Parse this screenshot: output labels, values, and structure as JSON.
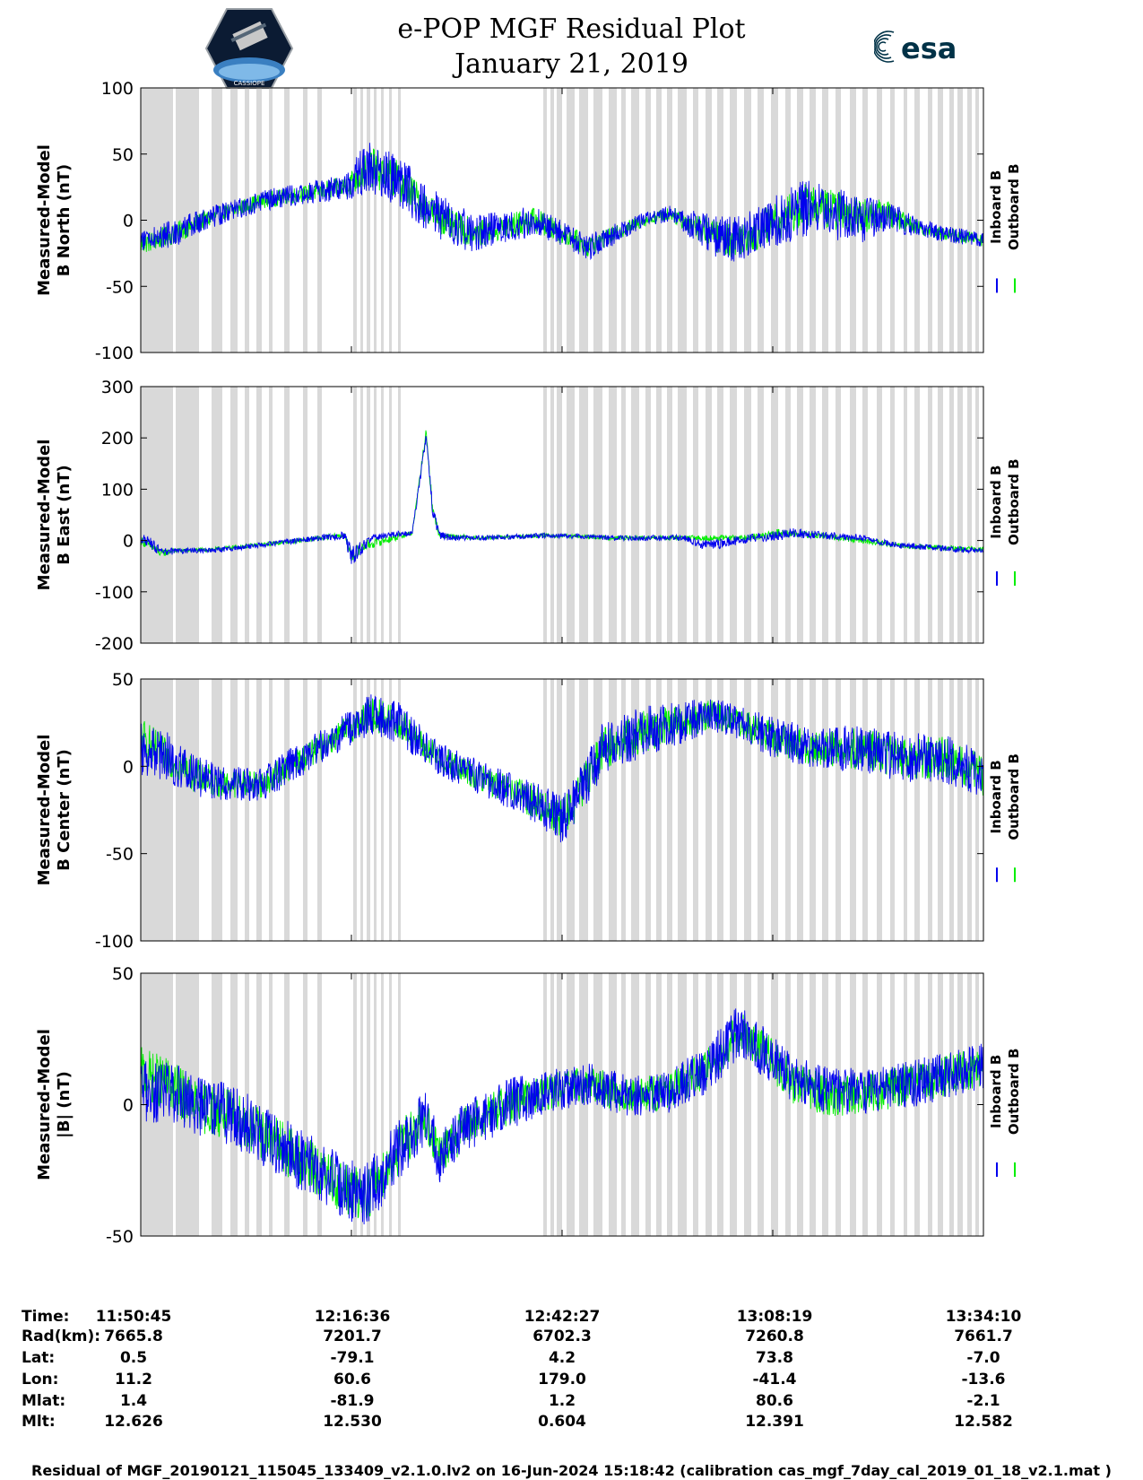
{
  "header": {
    "title": "e-POP MGF Residual Plot",
    "date": "January 21, 2019",
    "left_logo_text": "CASSIOPE",
    "right_logo_text": "esa"
  },
  "colors": {
    "inboard": "#0000ee",
    "outboard": "#00ee00",
    "gap_shading": "#d9d9d9"
  },
  "chart_data": [
    {
      "type": "line",
      "panel": "b-north",
      "ylabel_line1": "Measured-Model",
      "ylabel_line2": "B North (nT)",
      "ylim": [
        -100,
        100
      ],
      "yticks": [
        100,
        50,
        0,
        -50,
        -100
      ],
      "xlim": [
        0,
        6205
      ],
      "legend": {
        "position": "right",
        "entries": [
          "Inboard B",
          "Outboard B"
        ]
      },
      "series": [
        {
          "name": "Inboard B",
          "color_key": "inboard",
          "x": [
            0,
            150,
            250,
            350,
            600,
            900,
            1200,
            1500,
            1600,
            1700,
            1900,
            2100,
            2300,
            2500,
            2700,
            2900,
            3100,
            3300,
            3500,
            3700,
            3900,
            4100,
            4300,
            4500,
            4700,
            4900,
            5100,
            5300,
            5500,
            5700,
            5900,
            6205
          ],
          "y": [
            -15,
            -12,
            -10,
            -5,
            5,
            15,
            20,
            25,
            35,
            40,
            30,
            10,
            -5,
            -10,
            -5,
            0,
            -10,
            -20,
            -10,
            0,
            5,
            -5,
            -15,
            -10,
            0,
            10,
            5,
            0,
            5,
            -5,
            -10,
            -15
          ],
          "noise": [
            8,
            10,
            10,
            10,
            8,
            8,
            8,
            10,
            18,
            20,
            20,
            18,
            18,
            15,
            12,
            12,
            10,
            10,
            8,
            6,
            6,
            12,
            18,
            18,
            20,
            22,
            20,
            18,
            12,
            8,
            6,
            6
          ]
        },
        {
          "name": "Outboard B",
          "color_key": "outboard",
          "x": [
            0,
            150,
            250,
            350,
            600,
            900,
            1200,
            1500,
            1700,
            1900,
            2100,
            2300,
            2500,
            2700,
            2900,
            3100,
            3300,
            3500,
            3700,
            3900,
            4100,
            4300,
            4500,
            4700,
            4900,
            5100,
            5300,
            5500,
            5700,
            5900,
            6205
          ],
          "y": [
            -18,
            -14,
            -10,
            -5,
            5,
            15,
            20,
            25,
            40,
            30,
            10,
            -5,
            -10,
            -5,
            0,
            -10,
            -20,
            -10,
            0,
            5,
            -5,
            -15,
            -10,
            0,
            12,
            8,
            3,
            5,
            -5,
            -10,
            -15
          ],
          "noise": [
            8,
            8,
            8,
            8,
            6,
            6,
            6,
            8,
            15,
            15,
            12,
            12,
            10,
            10,
            10,
            8,
            8,
            6,
            5,
            5,
            10,
            14,
            14,
            15,
            16,
            15,
            14,
            10,
            6,
            5,
            5
          ]
        }
      ]
    },
    {
      "type": "line",
      "panel": "b-east",
      "ylabel_line1": "Measured-Model",
      "ylabel_line2": "B East (nT)",
      "ylim": [
        -200,
        300
      ],
      "yticks": [
        300,
        200,
        100,
        0,
        -100,
        -200
      ],
      "xlim": [
        0,
        6205
      ],
      "legend": {
        "position": "right",
        "entries": [
          "Inboard B",
          "Outboard B"
        ]
      },
      "series": [
        {
          "name": "Inboard B",
          "color_key": "inboard",
          "x": [
            0,
            100,
            150,
            250,
            500,
            700,
            1000,
            1300,
            1500,
            1550,
            1650,
            1700,
            1800,
            2000,
            2100,
            2150,
            2200,
            2300,
            2500,
            3000,
            3500,
            4000,
            4100,
            4200,
            4500,
            4700,
            4800,
            5000,
            5300,
            5600,
            6205
          ],
          "y": [
            5,
            -10,
            -25,
            -20,
            -20,
            -15,
            -5,
            5,
            10,
            -30,
            -10,
            5,
            10,
            15,
            200,
            60,
            10,
            5,
            5,
            10,
            5,
            5,
            -5,
            -10,
            5,
            10,
            15,
            10,
            5,
            -10,
            -20
          ],
          "noise": [
            10,
            12,
            10,
            6,
            5,
            5,
            5,
            6,
            8,
            20,
            12,
            6,
            6,
            6,
            10,
            15,
            8,
            6,
            5,
            5,
            5,
            6,
            8,
            12,
            8,
            10,
            10,
            8,
            6,
            6,
            6
          ]
        },
        {
          "name": "Outboard B",
          "color_key": "outboard",
          "x": [
            0,
            100,
            150,
            250,
            500,
            1000,
            1500,
            1550,
            1650,
            2000,
            2100,
            2150,
            2200,
            2500,
            3000,
            3500,
            4000,
            4500,
            4700,
            5000,
            5600,
            6205
          ],
          "y": [
            0,
            -15,
            -25,
            -20,
            -18,
            -5,
            10,
            -30,
            -10,
            15,
            210,
            60,
            10,
            5,
            10,
            5,
            5,
            5,
            15,
            10,
            -10,
            -18
          ],
          "noise": [
            8,
            10,
            8,
            5,
            4,
            4,
            6,
            15,
            10,
            5,
            8,
            10,
            6,
            4,
            4,
            4,
            5,
            6,
            8,
            6,
            5,
            5
          ]
        }
      ]
    },
    {
      "type": "line",
      "panel": "b-center",
      "ylabel_line1": "Measured-Model",
      "ylabel_line2": "B Center (nT)",
      "ylim": [
        -100,
        50
      ],
      "yticks": [
        50,
        0,
        -50,
        -100
      ],
      "xlim": [
        0,
        6205
      ],
      "legend": {
        "position": "right",
        "entries": [
          "Inboard B",
          "Outboard B"
        ]
      },
      "series": [
        {
          "name": "Inboard B",
          "color_key": "inboard",
          "x": [
            0,
            200,
            400,
            600,
            900,
            1200,
            1500,
            1700,
            1900,
            2100,
            2300,
            2600,
            2900,
            3100,
            3200,
            3400,
            3700,
            4000,
            4200,
            4400,
            4700,
            5000,
            5300,
            5600,
            5900,
            6205
          ],
          "y": [
            10,
            5,
            -5,
            -10,
            -10,
            5,
            20,
            30,
            25,
            10,
            0,
            -10,
            -20,
            -30,
            -20,
            10,
            20,
            25,
            30,
            25,
            15,
            10,
            10,
            5,
            5,
            -5
          ],
          "noise": [
            15,
            15,
            12,
            10,
            10,
            10,
            10,
            12,
            12,
            10,
            10,
            10,
            12,
            15,
            15,
            15,
            15,
            12,
            10,
            10,
            12,
            12,
            14,
            14,
            14,
            14
          ]
        },
        {
          "name": "Outboard B",
          "color_key": "outboard",
          "x": [
            0,
            200,
            400,
            600,
            900,
            1200,
            1500,
            1700,
            1900,
            2100,
            2300,
            2600,
            2900,
            3100,
            3200,
            3400,
            3700,
            4000,
            4200,
            4400,
            4700,
            5000,
            5300,
            5600,
            5900,
            6205
          ],
          "y": [
            15,
            5,
            -5,
            -10,
            -10,
            5,
            20,
            30,
            25,
            10,
            0,
            -10,
            -20,
            -30,
            -20,
            10,
            20,
            25,
            30,
            25,
            15,
            10,
            10,
            5,
            5,
            -5
          ],
          "noise": [
            14,
            10,
            10,
            8,
            8,
            8,
            8,
            10,
            10,
            8,
            8,
            8,
            10,
            12,
            12,
            12,
            12,
            10,
            8,
            8,
            10,
            10,
            12,
            12,
            12,
            12
          ]
        }
      ]
    },
    {
      "type": "line",
      "panel": "b-magnitude",
      "ylabel_line1": "Measured-Model",
      "ylabel_line2": "|B| (nT)",
      "ylim": [
        -50,
        50
      ],
      "yticks": [
        50,
        0,
        -50
      ],
      "xlim": [
        0,
        6205
      ],
      "legend": {
        "position": "right",
        "entries": [
          "Inboard B",
          "Outboard B"
        ]
      },
      "series": [
        {
          "name": "Inboard B",
          "color_key": "inboard",
          "x": [
            0,
            200,
            400,
            700,
            1000,
            1300,
            1500,
            1650,
            1800,
            2000,
            2100,
            2200,
            2400,
            2700,
            3000,
            3300,
            3600,
            3900,
            4200,
            4400,
            4600,
            4800,
            5100,
            5400,
            5700,
            6000,
            6205
          ],
          "y": [
            5,
            5,
            0,
            -5,
            -15,
            -25,
            -32,
            -35,
            -25,
            -10,
            -5,
            -20,
            -8,
            0,
            5,
            8,
            3,
            5,
            15,
            28,
            20,
            10,
            5,
            5,
            8,
            12,
            15
          ],
          "noise": [
            12,
            12,
            12,
            12,
            12,
            12,
            12,
            12,
            12,
            12,
            10,
            10,
            10,
            10,
            8,
            8,
            8,
            8,
            10,
            10,
            10,
            9,
            9,
            9,
            9,
            9,
            9
          ]
        },
        {
          "name": "Outboard B",
          "color_key": "outboard",
          "x": [
            0,
            200,
            400,
            700,
            1000,
            1300,
            1500,
            1650,
            1800,
            2000,
            2100,
            2200,
            2400,
            2700,
            3000,
            3300,
            3600,
            3900,
            4200,
            4400,
            4600,
            4800,
            5100,
            5400,
            5700,
            6000,
            6205
          ],
          "y": [
            12,
            8,
            0,
            -5,
            -15,
            -25,
            -32,
            -35,
            -25,
            -10,
            -5,
            -20,
            -8,
            0,
            5,
            8,
            3,
            5,
            15,
            28,
            20,
            8,
            3,
            5,
            8,
            12,
            15
          ],
          "noise": [
            10,
            10,
            10,
            10,
            10,
            10,
            10,
            10,
            10,
            10,
            8,
            8,
            8,
            8,
            7,
            7,
            7,
            7,
            8,
            8,
            8,
            8,
            8,
            8,
            8,
            8,
            8
          ]
        }
      ]
    }
  ],
  "info": {
    "labels": [
      "Time:",
      "Rad(km):",
      "Lat:",
      "Lon:",
      "Mlat:",
      "Mlt:"
    ],
    "columns": [
      {
        "values": [
          "11:50:45",
          "7665.8",
          "0.5",
          "11.2",
          "1.4",
          "12.626"
        ]
      },
      {
        "values": [
          "12:16:36",
          "7201.7",
          "-79.1",
          "60.6",
          "-81.9",
          "12.530"
        ]
      },
      {
        "values": [
          "12:42:27",
          "6702.3",
          "4.2",
          "179.0",
          "1.2",
          "0.604"
        ]
      },
      {
        "values": [
          "13:08:19",
          "7260.8",
          "73.8",
          "-41.4",
          "80.6",
          "12.391"
        ]
      },
      {
        "values": [
          "13:34:10",
          "7661.7",
          "-7.0",
          "-13.6",
          "-2.1",
          "12.582"
        ]
      }
    ]
  },
  "footer": "Residual of MGF_20190121_115045_133409_v2.1.0.lv2 on 16-Jun-2024 15:18:42 (calibration cas_mgf_7day_cal_2019_01_18_v2.1.mat )"
}
